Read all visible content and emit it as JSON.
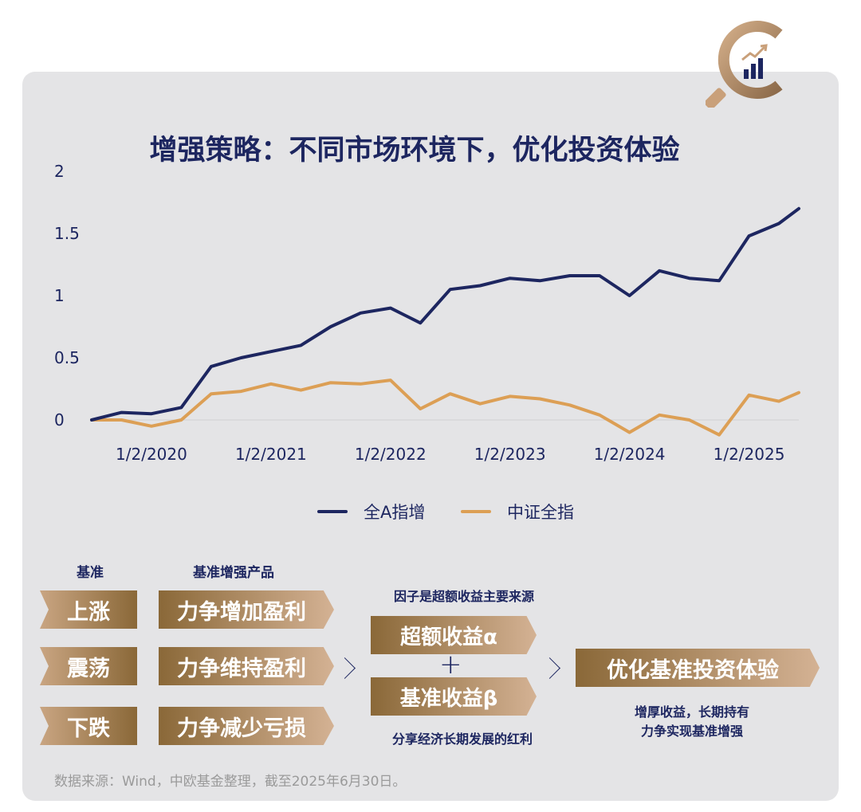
{
  "title": "增强策略：不同市场环境下，优化投资体验",
  "chart_data": {
    "type": "line",
    "y_ticks": [
      "2",
      "1.5",
      "1",
      "0.5",
      "0"
    ],
    "ylim": [
      0,
      2
    ],
    "x_ticks": [
      "1/2/2020",
      "1/2/2021",
      "1/2/2022",
      "1/2/2023",
      "1/2/2024",
      "1/2/2025"
    ],
    "x": [
      "2019-07",
      "2019-10",
      "2020-01",
      "2020-04",
      "2020-07",
      "2020-10",
      "2021-01",
      "2021-04",
      "2021-07",
      "2021-10",
      "2022-01",
      "2022-04",
      "2022-07",
      "2022-10",
      "2023-01",
      "2023-04",
      "2023-07",
      "2023-10",
      "2024-01",
      "2024-04",
      "2024-07",
      "2024-10",
      "2025-01",
      "2025-04",
      "2025-06"
    ],
    "series": [
      {
        "name": "全A指增",
        "color": "#1d2660",
        "values": [
          0.0,
          0.06,
          0.05,
          0.1,
          0.43,
          0.5,
          0.55,
          0.6,
          0.75,
          0.86,
          0.9,
          0.78,
          1.05,
          1.08,
          1.14,
          1.12,
          1.16,
          1.16,
          1.0,
          1.2,
          1.14,
          1.12,
          1.48,
          1.58,
          1.7
        ]
      },
      {
        "name": "中证全指",
        "color": "#dc9f55",
        "values": [
          0.0,
          0.0,
          -0.05,
          0.0,
          0.21,
          0.23,
          0.29,
          0.24,
          0.3,
          0.29,
          0.32,
          0.09,
          0.21,
          0.13,
          0.19,
          0.17,
          0.12,
          0.04,
          -0.1,
          0.04,
          0.0,
          -0.12,
          0.2,
          0.15,
          0.22
        ]
      }
    ]
  },
  "legend": {
    "a": "全A指增",
    "b": "中证全指"
  },
  "diagram": {
    "col1_head": "基准",
    "col2_head": "基准增强产品",
    "rows": [
      {
        "base": "上涨",
        "product": "力争增加盈利"
      },
      {
        "base": "震荡",
        "product": "力争维持盈利"
      },
      {
        "base": "下跌",
        "product": "力争减少亏损"
      }
    ],
    "factor_note": "因子是超额收益主要来源",
    "alpha": "超额收益α",
    "plus": "+",
    "beta": "基准收益β",
    "share_note": "分享经济长期发展的红利",
    "result": "优化基准投资体验",
    "result_note_1": "增厚收益，长期持有",
    "result_note_2": "力争实现基准增强"
  },
  "source": "数据来源：Wind，中欧基金整理，截至2025年6月30日。",
  "colors": {
    "navy": "#1d2660",
    "gold": "#dc9f55",
    "bronze": "#8a6838",
    "card": "#e4e4e6"
  }
}
